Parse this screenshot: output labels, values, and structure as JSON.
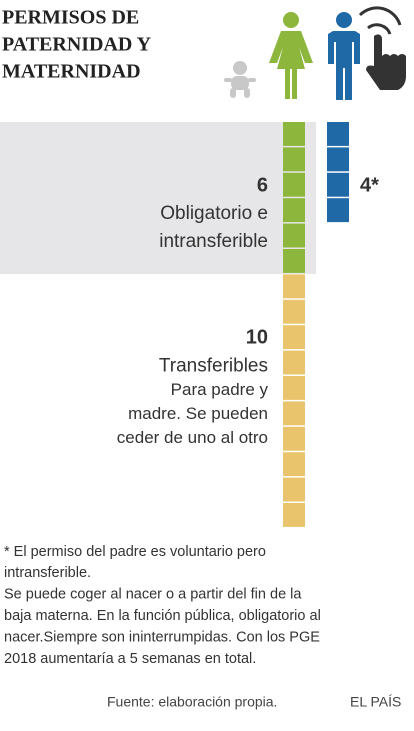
{
  "title": [
    "PERMISOS DE",
    "PATERNIDAD Y",
    "MATERNIDAD"
  ],
  "mother": {
    "blocks": [
      {
        "value": 6,
        "color": "#8cb63c",
        "text": [
          "Obligatorio e",
          "intransferible"
        ]
      },
      {
        "value": 10,
        "color": "#e9c46c",
        "text": [
          "Transferibles"
        ],
        "subtext": [
          "Para padre y",
          "madre. Se pueden",
          "ceder de uno al otro"
        ]
      }
    ]
  },
  "father": {
    "value": 4,
    "value_label": "4*",
    "color": "#1f69a6"
  },
  "notes": [
    "* El permiso del padre es voluntario pero",
    "intransferible.",
    "Se puede coger al nacer o a partir del fin de la",
    "baja materna. En la función pública, obligatorio al",
    "nacer.Siempre son  ininterrumpidas. Con los PGE",
    "2018 aumentaría a 5 semanas en total."
  ],
  "source": "Fuente: elaboración propia.",
  "brand": "EL PAÍS"
}
